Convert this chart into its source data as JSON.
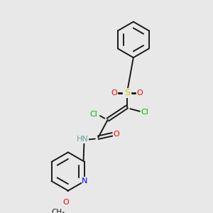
{
  "background_color": "#e8e8e8",
  "bond_color": "#1a1a1a",
  "colors": {
    "C": "#1a1a1a",
    "N": "#0000ff",
    "O": "#ff0000",
    "S": "#cccc00",
    "Cl": "#00bb00",
    "H": "#808080",
    "NH": "#70a0a0"
  },
  "font_size": 7.5,
  "lw": 1.4
}
